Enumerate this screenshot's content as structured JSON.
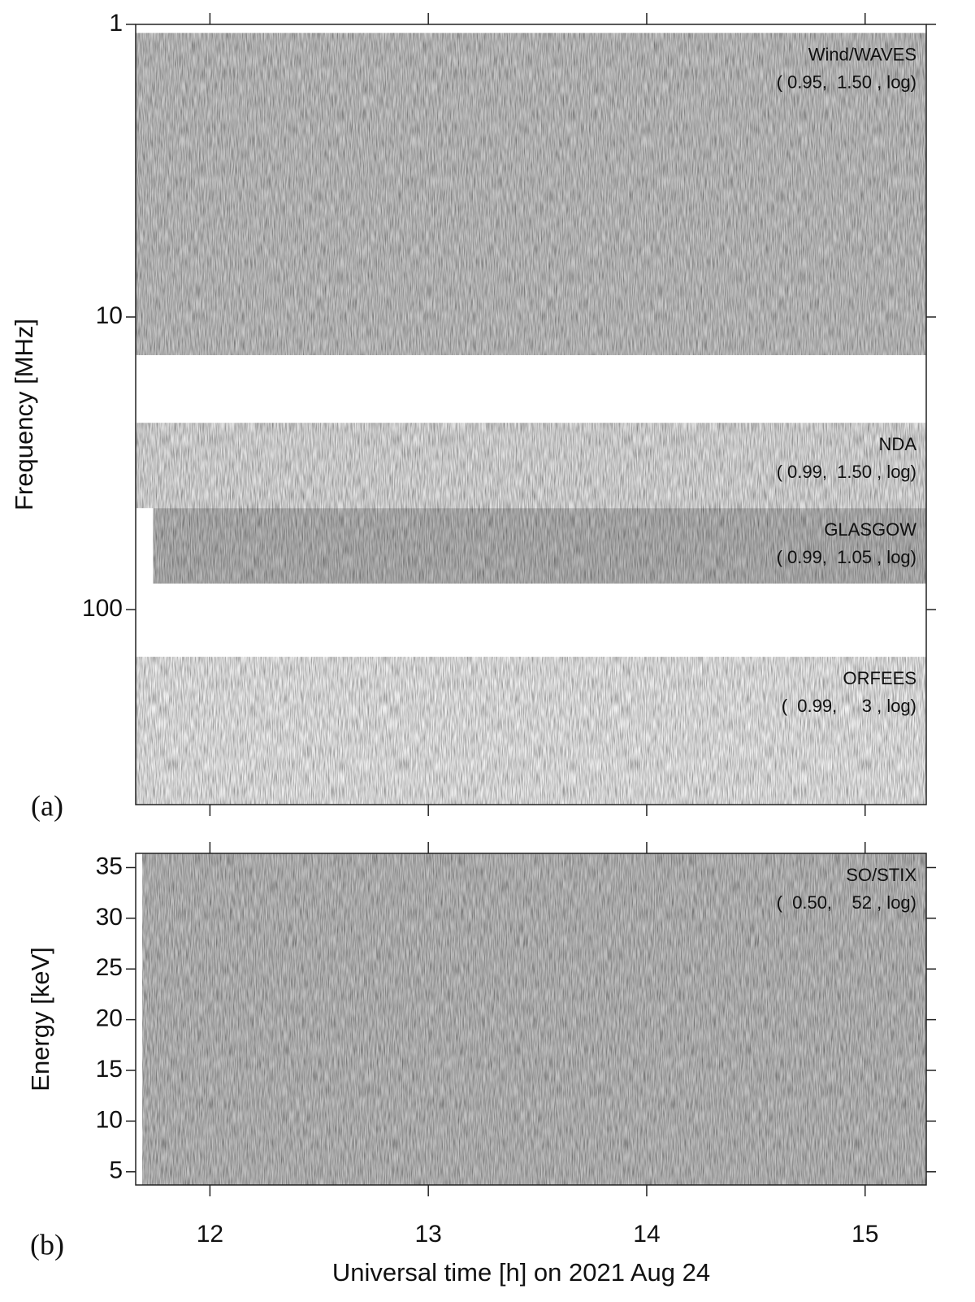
{
  "chart_data": [
    {
      "type": "spectrogram",
      "panel_label": "(a)",
      "ylabel": "Frequency [MHz]",
      "yscale": "log",
      "y_inverted": true,
      "ylim": [
        1,
        464
      ],
      "yticks": [
        1,
        10,
        100
      ],
      "xlim": [
        11.66,
        15.28
      ],
      "xticks": [
        12,
        13,
        14,
        15
      ],
      "xtick_labels": false,
      "series": [
        {
          "name": "Wind/WAVES",
          "range_label": "( 0.95,  1.50 , log)",
          "color": "#cbcbcb",
          "y_range": [
            1.07,
            13.5
          ],
          "time_range": [
            11.66,
            15.28
          ]
        },
        {
          "name": "NDA",
          "range_label": "( 0.99,  1.50 , log)",
          "color": "#e6e6e6",
          "y_range": [
            23,
            45
          ],
          "time_range": [
            11.66,
            15.28
          ]
        },
        {
          "name": "GLASGOW",
          "range_label": "( 0.99,  1.05 , log)",
          "color": "#bcbcbc",
          "y_range": [
            45,
            81.5
          ],
          "time_range": [
            11.74,
            15.28
          ]
        },
        {
          "name": "ORFEES",
          "range_label": "(  0.99,     3 , log)",
          "color": "#f3f3f3",
          "y_range": [
            145,
            464
          ],
          "time_range": [
            11.66,
            15.28
          ]
        }
      ]
    },
    {
      "type": "spectrogram",
      "panel_label": "(b)",
      "ylabel": "Energy [keV]",
      "xlabel": "Universal time [h] on 2021 Aug 24",
      "yscale": "linear",
      "y_inverted": false,
      "ylim": [
        3.7,
        36.4
      ],
      "yticks": [
        5,
        10,
        15,
        20,
        25,
        30,
        35
      ],
      "xlim": [
        11.66,
        15.28
      ],
      "xticks": [
        12,
        13,
        14,
        15
      ],
      "xtick_labels": true,
      "series": [
        {
          "name": "SO/STIX",
          "range_label": "(  0.50,    52 , log)",
          "color": "#c4c4c4",
          "y_range": [
            3.7,
            36.4
          ],
          "time_range": [
            11.69,
            15.28
          ]
        }
      ]
    }
  ]
}
